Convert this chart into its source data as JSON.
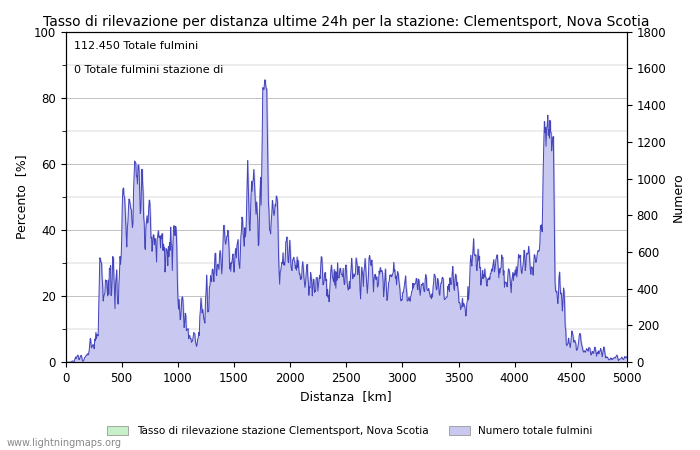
{
  "title": "Tasso di rilevazione per distanza ultime 24h per la stazione: Clementsport, Nova Scotia",
  "xlabel": "Distanza  [km]",
  "ylabel_left": "Percento  [%]",
  "ylabel_right": "Numero",
  "annotation_line1": "112.450 Totale fulmini",
  "annotation_line2": "0 Totale fulmini stazione di",
  "legend_label1": "Tasso di rilevazione stazione Clementsport, Nova Scotia",
  "legend_label2": "Numero totale fulmini",
  "footer": "www.lightningmaps.org",
  "xlim": [
    0,
    5000
  ],
  "ylim_left": [
    0,
    100
  ],
  "ylim_right": [
    0,
    1800
  ],
  "yticks_left": [
    0,
    20,
    40,
    60,
    80,
    100
  ],
  "yticks_right": [
    0,
    200,
    400,
    600,
    800,
    1000,
    1200,
    1400,
    1600,
    1800
  ],
  "xticks": [
    0,
    500,
    1000,
    1500,
    2000,
    2500,
    3000,
    3500,
    4000,
    4500,
    5000
  ],
  "minor_yticks_left": [
    10,
    30,
    50,
    70,
    90
  ],
  "fill_color_percent": "#c8f0c8",
  "fill_color_number": "#c8c8f0",
  "line_color_percent": "#4444bb",
  "line_color_number": "#4444bb",
  "background_color": "#ffffff",
  "grid_color": "#aaaaaa",
  "title_fontsize": 10,
  "label_fontsize": 9,
  "tick_fontsize": 8.5
}
